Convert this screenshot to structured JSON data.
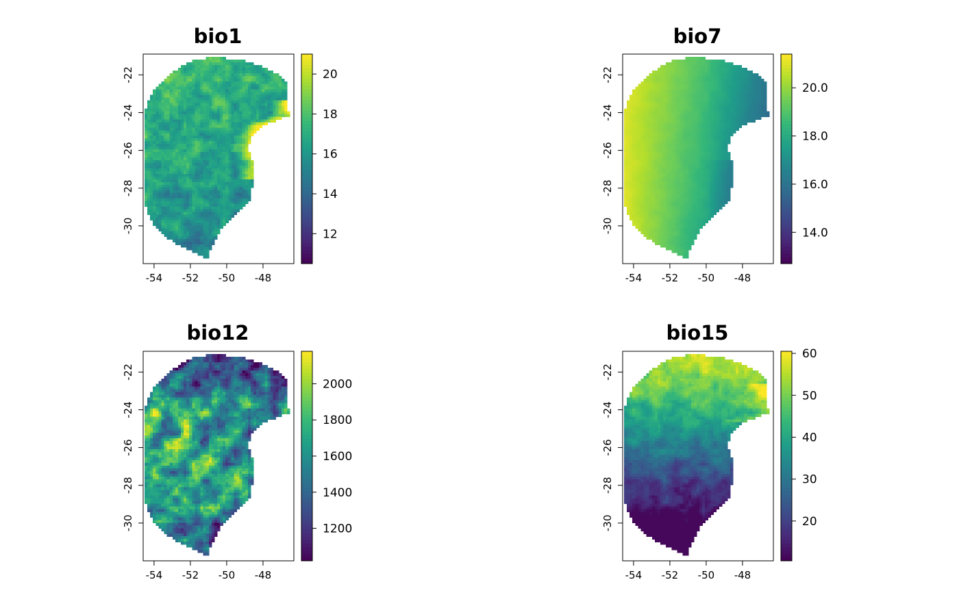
{
  "panels": [
    {
      "id": "bio1",
      "title": "bio1",
      "var": 0,
      "cb_range": [
        10.5,
        21.0
      ],
      "cb_ticks": [
        {
          "v": 12,
          "label": "12"
        },
        {
          "v": 14,
          "label": "14"
        },
        {
          "v": 16,
          "label": "16"
        },
        {
          "v": 18,
          "label": "18"
        },
        {
          "v": 20,
          "label": "20"
        }
      ]
    },
    {
      "id": "bio7",
      "title": "bio7",
      "var": 1,
      "cb_range": [
        12.7,
        21.4
      ],
      "cb_ticks": [
        {
          "v": 14,
          "label": "14.0"
        },
        {
          "v": 16,
          "label": "16.0"
        },
        {
          "v": 18,
          "label": "18.0"
        },
        {
          "v": 20,
          "label": "20.0"
        }
      ]
    },
    {
      "id": "bio12",
      "title": "bio12",
      "var": 2,
      "cb_range": [
        1020,
        2180
      ],
      "cb_ticks": [
        {
          "v": 1200,
          "label": "1200"
        },
        {
          "v": 1400,
          "label": "1400"
        },
        {
          "v": 1600,
          "label": "1600"
        },
        {
          "v": 1800,
          "label": "1800"
        },
        {
          "v": 2000,
          "label": "2000"
        }
      ]
    },
    {
      "id": "bio15",
      "title": "bio15",
      "var": 3,
      "cb_range": [
        10.5,
        60.5
      ],
      "cb_ticks": [
        {
          "v": 20,
          "label": "20"
        },
        {
          "v": 30,
          "label": "30"
        },
        {
          "v": 40,
          "label": "40"
        },
        {
          "v": 50,
          "label": "50"
        },
        {
          "v": 60,
          "label": "60"
        }
      ]
    }
  ],
  "x_ticks": [
    {
      "v": -54,
      "label": "-54"
    },
    {
      "v": -52,
      "label": "-52"
    },
    {
      "v": -50,
      "label": "-50"
    },
    {
      "v": -48,
      "label": "-48"
    }
  ],
  "y_ticks": [
    {
      "v": -22,
      "label": "-22"
    },
    {
      "v": -24,
      "label": "-24"
    },
    {
      "v": -26,
      "label": "-26"
    },
    {
      "v": -28,
      "label": "-28"
    },
    {
      "v": -30,
      "label": "-30"
    }
  ],
  "extent": {
    "lon": [
      -54.6,
      -46.3
    ],
    "lat": [
      -32.0,
      -20.9
    ]
  },
  "palette": "viridis"
}
